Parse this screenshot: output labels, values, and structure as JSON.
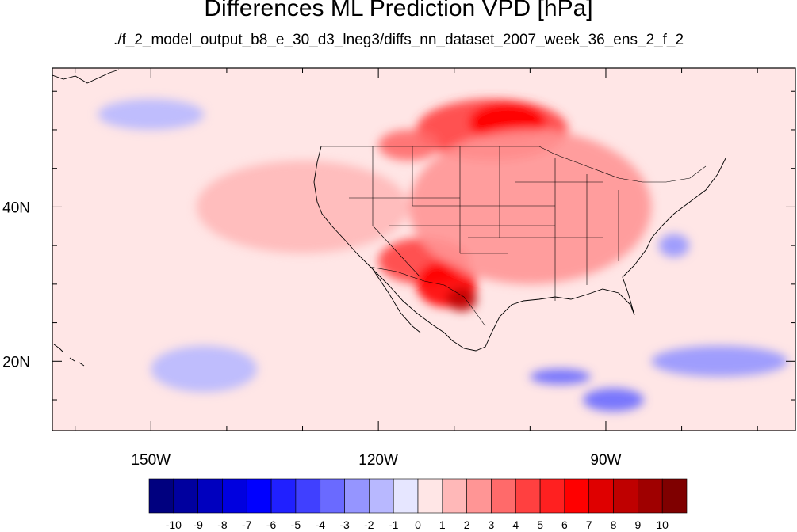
{
  "chart_data": {
    "type": "heatmap",
    "title": "Differences ML Prediction VPD [hPa]",
    "subtitle": "./f_2_model_output_b8_e_30_d3_lneg3/diffs_nn_dataset_2007_week_36_ens_2_f_2",
    "x_axis": {
      "range": [
        -163,
        -65
      ],
      "ticks": [
        {
          "value": -150,
          "label": "150W"
        },
        {
          "value": -120,
          "label": "120W"
        },
        {
          "value": -90,
          "label": "90W"
        }
      ]
    },
    "y_axis": {
      "range": [
        11,
        58
      ],
      "ticks": [
        {
          "value": 40,
          "label": "40N"
        },
        {
          "value": 20,
          "label": "20N"
        }
      ]
    },
    "colorbar": {
      "labels": [
        "-10",
        "-9",
        "-8",
        "-7",
        "-6",
        "-5",
        "-4",
        "-3",
        "-2",
        "-1",
        "0",
        "1",
        "2",
        "3",
        "4",
        "5",
        "6",
        "7",
        "8",
        "9",
        "10"
      ],
      "colors": [
        "#00007f",
        "#00009f",
        "#0000bf",
        "#0000df",
        "#0000ff",
        "#2020ff",
        "#4040ff",
        "#6a6aff",
        "#9595ff",
        "#b8b8ff",
        "#e6e6ff",
        "#ffe6e6",
        "#ffb8b8",
        "#ff9595",
        "#ff6a6a",
        "#ff4040",
        "#ff2020",
        "#ff0000",
        "#df0000",
        "#bf0000",
        "#9f0000",
        "#7f0000"
      ]
    },
    "regions": [
      {
        "value": 4,
        "lon": -105,
        "lat": 50,
        "rlon": 10,
        "rlat": 4
      },
      {
        "value": 6,
        "lon": -103,
        "lat": 51,
        "rlon": 5,
        "rlat": 2.5
      },
      {
        "value": 3,
        "lon": -116,
        "lat": 48,
        "rlon": 4,
        "rlat": 2
      },
      {
        "value": 4,
        "lon": -114,
        "lat": 33,
        "rlon": 6,
        "rlat": 3
      },
      {
        "value": 6,
        "lon": -111,
        "lat": 30,
        "rlon": 4,
        "rlat": 3
      },
      {
        "value": 8,
        "lon": -109,
        "lat": 28,
        "rlon": 2,
        "rlat": 1.5
      },
      {
        "value": 2,
        "lon": -100,
        "lat": 40,
        "rlon": 16,
        "rlat": 10
      },
      {
        "value": 1,
        "lon": -130,
        "lat": 40,
        "rlon": 14,
        "rlat": 6
      },
      {
        "value": -2,
        "lon": -81,
        "lat": 35,
        "rlon": 2,
        "rlat": 1.5
      },
      {
        "value": -2,
        "lon": -75,
        "lat": 20,
        "rlon": 9,
        "rlat": 2
      },
      {
        "value": -3,
        "lon": -89,
        "lat": 15,
        "rlon": 4,
        "rlat": 1.5
      },
      {
        "value": -3,
        "lon": -96,
        "lat": 18,
        "rlon": 4,
        "rlat": 1
      },
      {
        "value": -1,
        "lon": -143,
        "lat": 19,
        "rlon": 7,
        "rlat": 3
      },
      {
        "value": -1,
        "lon": -150,
        "lat": 52,
        "rlon": 7,
        "rlat": 2
      }
    ]
  }
}
